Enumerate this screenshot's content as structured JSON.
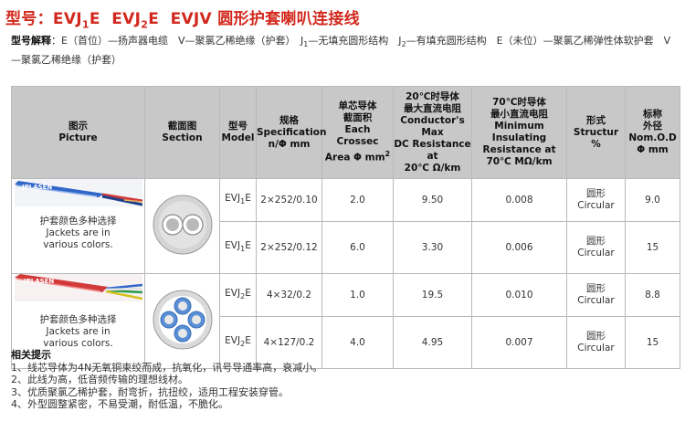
{
  "title": {
    "prefix": "型号：",
    "m1_a": "EVJ",
    "m1_sub": "1",
    "m1_b": "E",
    "m2_a": "EVJ",
    "m2_sub": "2",
    "m2_b": "E",
    "m3": "EVJV",
    "name": "圆形护套喇叭连接线"
  },
  "explain": {
    "label": "型号解释",
    "p1": "：E（首位）—扬声器电缆　V—聚氯乙稀绝缘（护套）　J",
    "s1": "1",
    "p2": "—无填充圆形结构　J",
    "s2": "2",
    "p3": "—有填充圆形结构　E（未位）—聚氯乙稀弹性体软护套　V—聚氯乙稀绝缘（护套）"
  },
  "headers": {
    "picture_cn": "图示",
    "picture_en": "Picture",
    "section_cn": "截面图",
    "section_en": "Section",
    "model_cn": "型号",
    "model_en": "Model",
    "spec_cn": "规格",
    "spec_en1": "Specification",
    "spec_en2": "n/Φ mm",
    "area_cn1": "单芯导体",
    "area_cn2": "截面积",
    "area_en1": "Each",
    "area_en2": "Crossec",
    "area_en3": "Area Φ mm",
    "area_sup": "2",
    "res_cn1": "20℃时导体",
    "res_cn2": "最大直流电阻",
    "res_en1": "Conductor's",
    "res_en2": "Max",
    "res_en3": "DC Resistance",
    "res_en4": "at",
    "res_en5": "20℃ Ω/km",
    "ins_cn1": "70℃时导体",
    "ins_cn2": "最小直流电阻",
    "ins_en1": "Minimum",
    "ins_en2": "Insulating",
    "ins_en3": "Resistance at",
    "ins_en4": "70℃ MΩ/km",
    "struct_cn": "形式",
    "struct_en": "Structur %",
    "od_cn1": "标称",
    "od_cn2": "外径",
    "od_en1": "Nom.O.D",
    "od_en2": "Φ mm"
  },
  "picture_text": {
    "cn": "护套颜色多种选择",
    "en1": "Jackets are in",
    "en2": "various colors."
  },
  "brand": "JPLASEN",
  "colors": {
    "title": "#d2281e",
    "header_bg": "#c8c8c8",
    "blue_cable": "#2f66c8",
    "red_cable": "#d23a3a"
  },
  "rows": [
    {
      "model_a": "EVJ",
      "model_sub": "1",
      "model_b": "E",
      "spec": "2×252/0.10",
      "area": "2.0",
      "resistance": "9.50",
      "insulation": "0.008",
      "struct_cn": "圆形",
      "struct_en": "Circular",
      "od": "9.0"
    },
    {
      "model_a": "EVJ",
      "model_sub": "1",
      "model_b": "E",
      "spec": "2×252/0.12",
      "area": "6.0",
      "resistance": "3.30",
      "insulation": "0.006",
      "struct_cn": "圆形",
      "struct_en": "Circular",
      "od": "15"
    },
    {
      "model_a": "EVJ",
      "model_sub": "2",
      "model_b": "E",
      "spec": "4×32/0.2",
      "area": "1.0",
      "resistance": "19.5",
      "insulation": "0.010",
      "struct_cn": "圆形",
      "struct_en": "Circular",
      "od": "8.8"
    },
    {
      "model_a": "EVJ",
      "model_sub": "2",
      "model_b": "E",
      "spec": "4×127/0.2",
      "area": "4.0",
      "resistance": "4.95",
      "insulation": "0.007",
      "struct_cn": "圆形",
      "struct_en": "Circular",
      "od": "15"
    }
  ],
  "notes": {
    "title": "相关提示",
    "items": [
      "1、线芯导体为4N无氧铜束绞而成，抗氧化，讯号导通率高，衰减小。",
      "2、此线为高，低音频传输的理想线材。",
      "3、优质聚氯乙稀护套，耐弯折，抗扭绞，适用工程安装穿管。",
      "4、外型圆整紧密，不易受潮，耐低温，不脆化。"
    ]
  }
}
